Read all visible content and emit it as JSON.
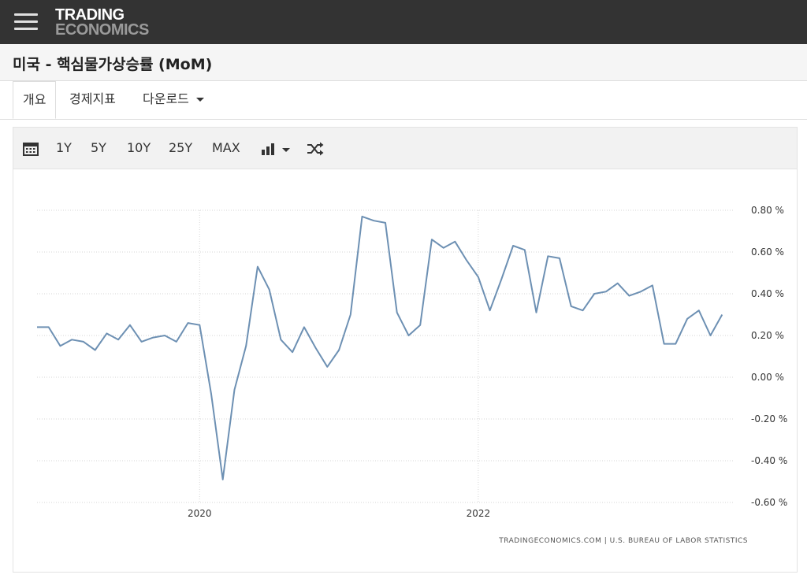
{
  "header": {
    "logo_line1": "TRADING",
    "logo_line2": "ECONOMICS"
  },
  "page": {
    "title": "미국 - 핵심물가상승률 (MoM)"
  },
  "tabs": [
    {
      "label": "개요",
      "active": true
    },
    {
      "label": "경제지표",
      "active": false
    },
    {
      "label": "다운로드",
      "active": false
    }
  ],
  "toolbar": {
    "ranges": [
      "1Y",
      "5Y",
      "10Y",
      "25Y",
      "MAX"
    ]
  },
  "chart_data": {
    "type": "line",
    "title": "",
    "xlabel": "",
    "ylabel": "",
    "x_tick_labels": [
      "2020",
      "2022"
    ],
    "y_tick_labels": [
      "0.80 %",
      "0.60 %",
      "0.40 %",
      "0.20 %",
      "0.00 %",
      "-0.20 %",
      "-0.40 %",
      "-0.60 %"
    ],
    "ylim": [
      -0.6,
      0.8
    ],
    "grid": true,
    "color": "#6d90b3",
    "source": "TRADINGECONOMICS.COM | U.S. BUREAU OF LABOR STATISTICS",
    "series": [
      {
        "x": [
          "2018-11",
          "2018-12",
          "2019-01",
          "2019-02",
          "2019-03",
          "2019-04",
          "2019-05",
          "2019-06",
          "2019-07",
          "2019-08",
          "2019-09",
          "2019-10",
          "2019-11",
          "2019-12",
          "2020-01",
          "2020-02",
          "2020-03",
          "2020-04",
          "2020-05",
          "2020-06",
          "2020-07",
          "2020-08",
          "2020-09",
          "2020-10",
          "2020-11",
          "2020-12",
          "2021-01",
          "2021-02",
          "2021-03",
          "2021-04",
          "2021-05",
          "2021-06",
          "2021-07",
          "2021-08",
          "2021-09",
          "2021-10",
          "2021-11",
          "2021-12",
          "2022-01",
          "2022-02",
          "2022-03",
          "2022-04",
          "2022-05",
          "2022-06",
          "2022-07",
          "2022-08",
          "2022-09",
          "2022-10",
          "2022-11",
          "2022-12",
          "2023-01",
          "2023-02",
          "2023-03",
          "2023-04",
          "2023-05",
          "2023-06",
          "2023-07",
          "2023-08",
          "2023-09",
          "2023-10",
          "2023-11"
        ],
        "values": [
          0.24,
          0.24,
          0.15,
          0.18,
          0.17,
          0.13,
          0.21,
          0.18,
          0.25,
          0.17,
          0.19,
          0.2,
          0.17,
          0.26,
          0.25,
          -0.08,
          -0.49,
          -0.06,
          0.15,
          0.53,
          0.42,
          0.18,
          0.12,
          0.24,
          0.14,
          0.05,
          0.13,
          0.3,
          0.77,
          0.75,
          0.74,
          0.31,
          0.2,
          0.25,
          0.66,
          0.62,
          0.65,
          0.56,
          0.48,
          0.32,
          0.47,
          0.63,
          0.61,
          0.31,
          0.58,
          0.57,
          0.34,
          0.32,
          0.4,
          0.41,
          0.45,
          0.39,
          0.41,
          0.44,
          0.16,
          0.16,
          0.28,
          0.32,
          0.2,
          0.3,
          null
        ]
      }
    ]
  }
}
